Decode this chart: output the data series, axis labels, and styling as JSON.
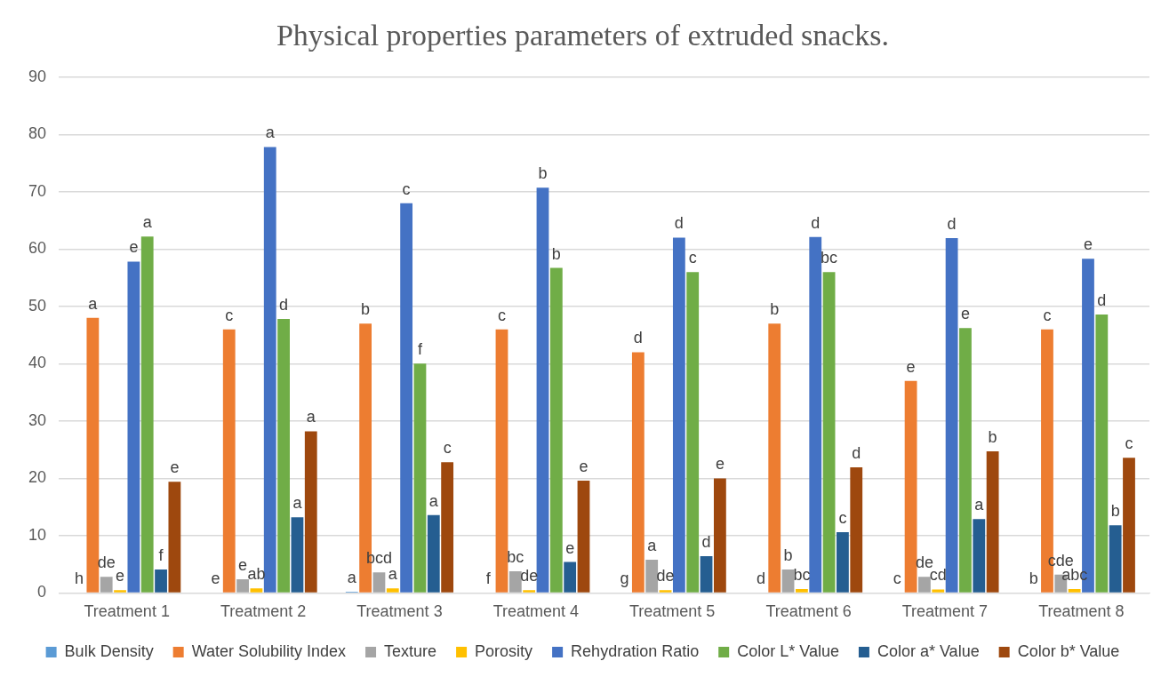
{
  "chart_data": {
    "type": "bar",
    "title": "Physical properties parameters of extruded snacks.",
    "categories": [
      "Treatment 1",
      "Treatment 2",
      "Treatment 3",
      "Treatment 4",
      "Treatment 5",
      "Treatment 6",
      "Treatment 7",
      "Treatment 8"
    ],
    "series": [
      {
        "name": "Bulk Density",
        "color": "#5b9bd5",
        "values": [
          0.1,
          0.1,
          0.2,
          0.1,
          0.1,
          0.1,
          0.1,
          0.1
        ],
        "value_labels": [
          "h",
          "e",
          "a",
          "f",
          "g",
          "d",
          "c",
          "b"
        ]
      },
      {
        "name": "Water Solubility Index",
        "color": "#ed7d31",
        "values": [
          48,
          46,
          47,
          46,
          42,
          47,
          37,
          46
        ],
        "value_labels": [
          "a",
          "c",
          "b",
          "c",
          "d",
          "b",
          "e",
          "c"
        ]
      },
      {
        "name": "Texture",
        "color": "#a5a5a5",
        "values": [
          2.8,
          2.4,
          3.6,
          3.8,
          5.8,
          4.1,
          2.8,
          3.2
        ],
        "value_labels": [
          "de",
          "e",
          "bcd",
          "bc",
          "a",
          "b",
          "de",
          "cde"
        ]
      },
      {
        "name": "Porosity",
        "color": "#ffc000",
        "values": [
          0.5,
          0.8,
          0.8,
          0.5,
          0.5,
          0.7,
          0.6,
          0.7
        ],
        "value_labels": [
          "e",
          "ab",
          "a",
          "de",
          "de",
          "bc",
          "cd",
          "abc"
        ]
      },
      {
        "name": "Rehydration Ratio",
        "color": "#4472c4",
        "values": [
          57.8,
          77.8,
          68,
          70.7,
          62,
          62.1,
          61.9,
          58.3
        ],
        "value_labels": [
          "e",
          "a",
          "c",
          "b",
          "d",
          "d",
          "d",
          "e"
        ]
      },
      {
        "name": "Color L* Value",
        "color": "#70ad47",
        "values": [
          62.2,
          47.8,
          40,
          56.7,
          56,
          56,
          46.2,
          48.6
        ],
        "value_labels": [
          "a",
          "d",
          "f",
          "b",
          "c",
          "bc",
          "e",
          "d"
        ]
      },
      {
        "name": "Color a* Value",
        "color": "#255e91",
        "values": [
          4.1,
          13.2,
          13.6,
          5.4,
          6.4,
          10.6,
          12.9,
          11.8
        ],
        "value_labels": [
          "f",
          "a",
          "a",
          "e",
          "d",
          "c",
          "a",
          "b"
        ]
      },
      {
        "name": "Color b* Value",
        "color": "#9e480e",
        "values": [
          19.4,
          28.2,
          22.8,
          19.6,
          20,
          21.9,
          24.7,
          23.6
        ],
        "value_labels": [
          "e",
          "a",
          "c",
          "e",
          "e",
          "d",
          "b",
          "c"
        ]
      }
    ],
    "ylim": [
      0,
      90
    ],
    "yticks": [
      0,
      10,
      20,
      30,
      40,
      50,
      60,
      70,
      80,
      90
    ],
    "grid": "y",
    "legend": "bottom"
  }
}
